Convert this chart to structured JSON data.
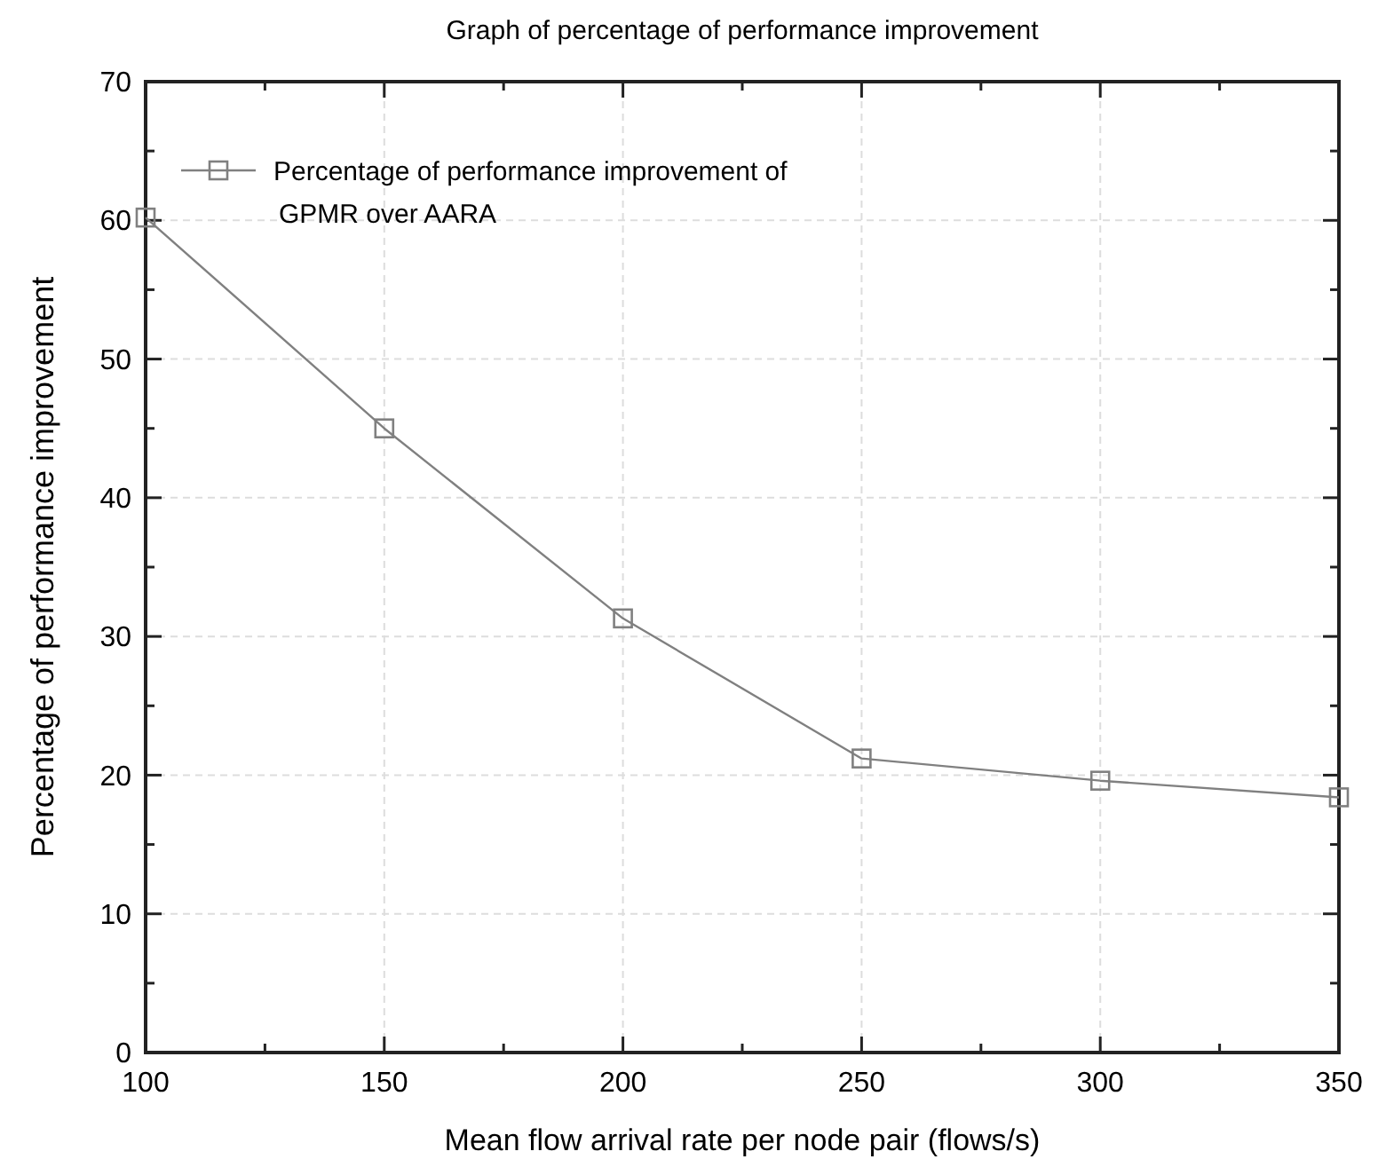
{
  "chart_data": {
    "type": "line",
    "title": "Graph of percentage of performance improvement",
    "xlabel": "Mean flow arrival rate per node pair (flows/s)",
    "ylabel": "Percentage of performance improvement",
    "x": [
      100,
      150,
      200,
      250,
      300,
      350
    ],
    "series": [
      {
        "name": "Percentage of performance improvement of GPMR over AARA",
        "color": "#808080",
        "values": [
          60.2,
          45.0,
          31.3,
          21.2,
          19.6,
          18.4
        ]
      }
    ],
    "xlim": [
      100,
      350
    ],
    "ylim": [
      0,
      70
    ],
    "xticks": [
      100,
      {
        "value": 125,
        "label": null
      },
      150,
      {
        "value": 175,
        "label": null
      },
      200,
      {
        "value": 225,
        "label": null
      },
      250,
      {
        "value": 275,
        "label": null
      },
      300,
      {
        "value": 325,
        "label": null
      },
      350
    ],
    "yticks": [
      0,
      {
        "value": 5,
        "label": null
      },
      10,
      {
        "value": 15,
        "label": null
      },
      20,
      {
        "value": 25,
        "label": null
      },
      30,
      {
        "value": 35,
        "label": null
      },
      40,
      {
        "value": 45,
        "label": null
      },
      50,
      {
        "value": 55,
        "label": null
      },
      60,
      {
        "value": 65,
        "label": null
      },
      70
    ],
    "grid": true,
    "legend": "top left",
    "marker": "square",
    "line_style": "solid"
  }
}
